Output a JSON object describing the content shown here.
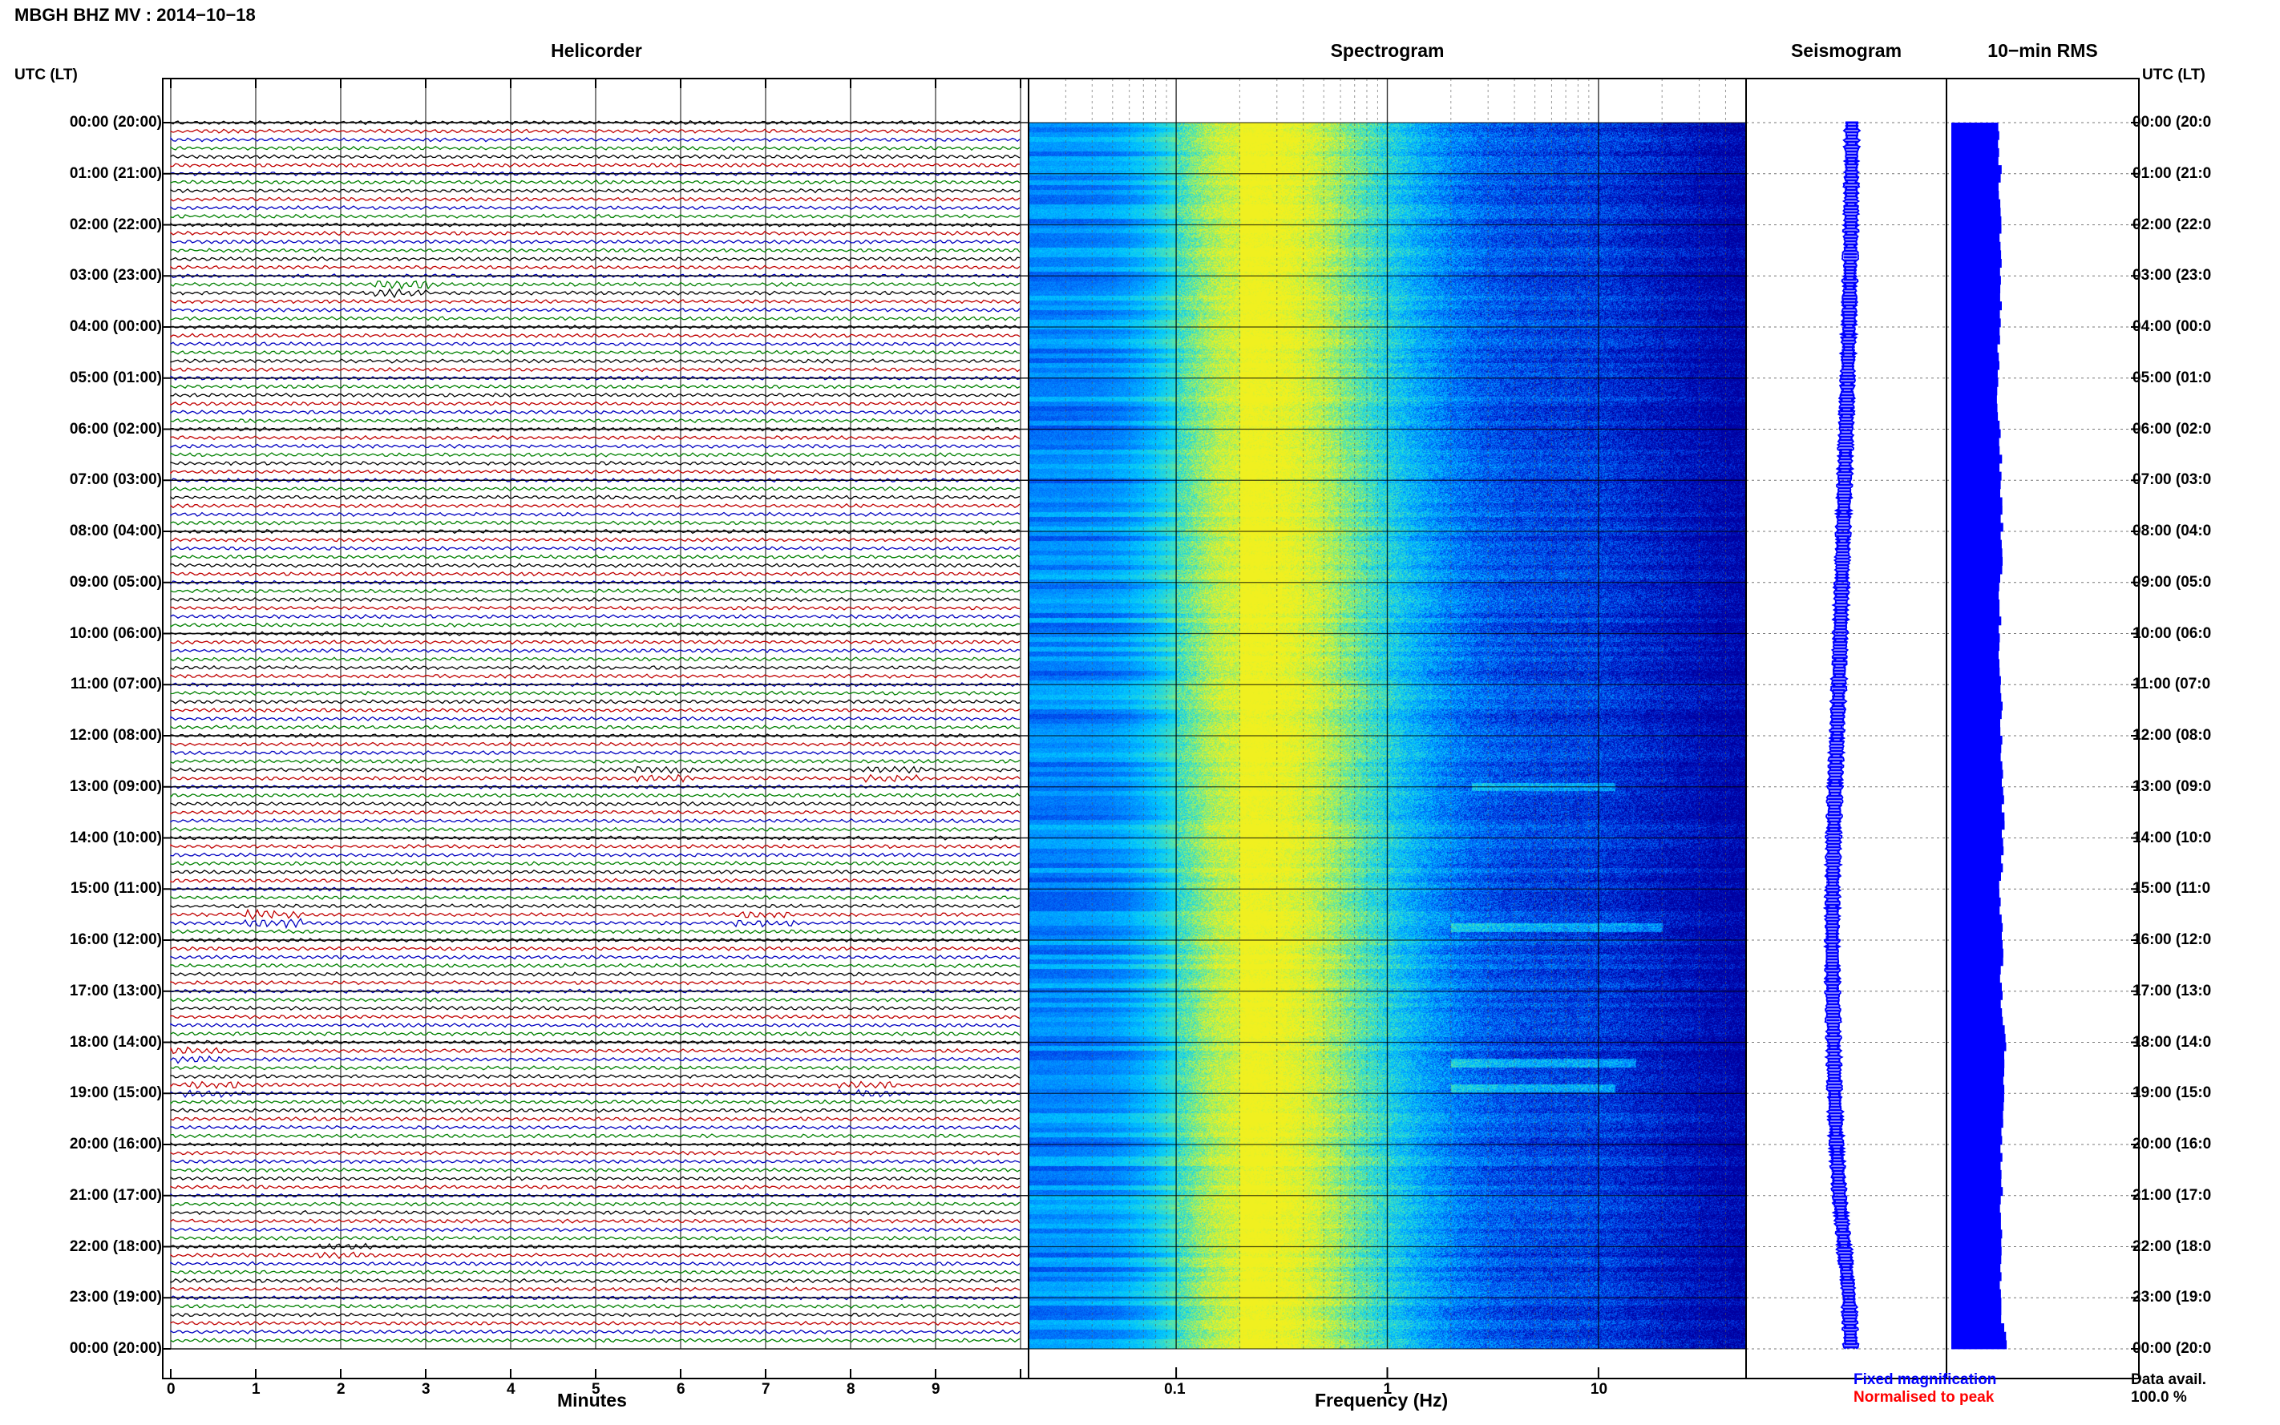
{
  "header": {
    "title": "MBGH BHZ MV : 2014−10−18"
  },
  "columns": {
    "left_label": "UTC (LT)",
    "right_label": "UTC (LT)"
  },
  "panels": {
    "helicorder": "Helicorder",
    "spectrogram": "Spectrogram",
    "seismogram": "Seismogram",
    "rms": "10−min RMS"
  },
  "axes": {
    "helicorder_xlabel": "Minutes",
    "spectrogram_xlabel": "Frequency (Hz)"
  },
  "legend": {
    "fixed": "Fixed magnification",
    "normalised": "Normalised to peak",
    "fixed_color": "#0000ff",
    "normalised_color": "#ff0000"
  },
  "availability": {
    "label": "Data avail.",
    "value": "100.0 %"
  },
  "chart_data": [
    {
      "type": "line",
      "title": "Helicorder",
      "xlabel": "Minutes",
      "x_ticks": [
        "0",
        "1",
        "2",
        "3",
        "4",
        "5",
        "6",
        "7",
        "8",
        "9"
      ],
      "xlim": [
        0,
        10
      ],
      "trace_colors": [
        "#000000",
        "#c00000",
        "#0000c0",
        "#008000"
      ],
      "traces_per_hour": 6,
      "hours": 24,
      "y_tick_labels_left": [
        "00:00 (20:00)",
        "01:00 (21:00)",
        "02:00 (22:00)",
        "03:00 (23:00)",
        "04:00 (00:00)",
        "05:00 (01:00)",
        "06:00 (02:00)",
        "07:00 (03:00)",
        "08:00 (04:00)",
        "09:00 (05:00)",
        "10:00 (06:00)",
        "11:00 (07:00)",
        "12:00 (08:00)",
        "13:00 (09:00)",
        "14:00 (10:00)",
        "15:00 (11:00)",
        "16:00 (12:00)",
        "17:00 (13:00)",
        "18:00 (14:00)",
        "19:00 (15:00)",
        "20:00 (16:00)",
        "21:00 (17:00)",
        "22:00 (18:00)",
        "23:00 (19:00)",
        "00:00 (20:00)"
      ],
      "y_tick_labels_right": [
        "00:00 (20:0",
        "01:00 (21:0",
        "02:00 (22:0",
        "03:00 (23:0",
        "04:00 (00:0",
        "05:00 (01:0",
        "06:00 (02:0",
        "07:00 (03:0",
        "08:00 (04:0",
        "09:00 (05:0",
        "10:00 (06:0",
        "11:00 (07:0",
        "12:00 (08:0",
        "13:00 (09:0",
        "14:00 (10:0",
        "15:00 (11:0",
        "16:00 (12:0",
        "17:00 (13:0",
        "18:00 (14:0",
        "19:00 (15:0",
        "20:00 (16:0",
        "21:00 (17:0",
        "22:00 (18:0",
        "23:00 (19:0",
        "00:00 (20:0"
      ],
      "events": [
        {
          "hour": 3.3,
          "minute": 2.7,
          "amp": 2.5
        },
        {
          "hour": 12.7,
          "minute": 5.8,
          "amp": 2.0
        },
        {
          "hour": 12.7,
          "minute": 8.5,
          "amp": 2.0
        },
        {
          "hour": 15.6,
          "minute": 1.2,
          "amp": 2.5
        },
        {
          "hour": 15.6,
          "minute": 7.0,
          "amp": 2.0
        },
        {
          "hour": 18.3,
          "minute": 0.3,
          "amp": 2.0
        },
        {
          "hour": 18.95,
          "minute": 0.5,
          "amp": 2.0
        },
        {
          "hour": 18.95,
          "minute": 8.2,
          "amp": 2.0
        },
        {
          "hour": 22.1,
          "minute": 2.0,
          "amp": 1.8
        }
      ]
    },
    {
      "type": "heatmap",
      "title": "Spectrogram",
      "xlabel": "Frequency (Hz)",
      "x_scale": "log",
      "xlim": [
        0.02,
        50
      ],
      "x_tick_labels": [
        "0.1",
        "1",
        "10"
      ],
      "x_tick_values": [
        0.1,
        1,
        10
      ],
      "peak_frequency_hz": 0.2,
      "colormap": [
        "#0000a0",
        "#0033e0",
        "#0080ff",
        "#00c8ff",
        "#40e0c0",
        "#a0f060",
        "#f0f020"
      ],
      "bright_bands": [
        {
          "hour": 13.0,
          "fmin": 2.5,
          "fmax": 12
        },
        {
          "hour": 15.75,
          "fmin": 2.0,
          "fmax": 20
        },
        {
          "hour": 18.4,
          "fmin": 2.0,
          "fmax": 15
        },
        {
          "hour": 18.9,
          "fmin": 2.0,
          "fmax": 12
        }
      ]
    },
    {
      "type": "line",
      "title": "Seismogram",
      "color": "#0000ff",
      "offset_profile": [
        0,
        0.05,
        0.1,
        0.2,
        0.3,
        0.45,
        0.6,
        0.75,
        0.9,
        1.05,
        1.2,
        1.35,
        1.55,
        1.75,
        1.9,
        2.0,
        2.05,
        2.0,
        1.9,
        1.8,
        1.6,
        1.3,
        0.8,
        0.3,
        0.1
      ]
    },
    {
      "type": "bar",
      "title": "10−min RMS",
      "color": "#0000ff",
      "orientation": "horizontal",
      "bins_per_hour": 6,
      "relative_values": [
        0.83,
        0.85,
        0.84,
        0.87,
        0.82,
        0.8,
        0.84,
        0.86,
        0.88,
        0.85,
        0.83,
        0.87,
        0.86,
        0.89,
        0.9,
        0.84,
        0.88,
        0.87,
        0.93,
        0.92,
        0.88,
        0.86,
        0.87,
        0.85,
        0.96
      ]
    }
  ]
}
